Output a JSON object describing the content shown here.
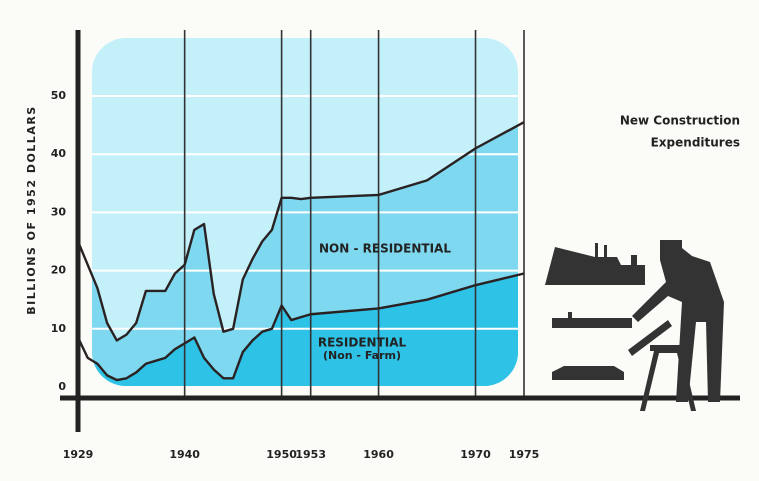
{
  "chart_data": {
    "type": "area",
    "stacked": true,
    "title_lines": [
      "New Construction",
      "Expenditures"
    ],
    "y_label": "BILLIONS OF 1952 DOLLARS",
    "x": [
      1929,
      1930,
      1931,
      1932,
      1933,
      1934,
      1935,
      1936,
      1937,
      1938,
      1939,
      1940,
      1941,
      1942,
      1943,
      1944,
      1945,
      1946,
      1947,
      1948,
      1949,
      1950,
      1951,
      1952,
      1953,
      1960,
      1965,
      1970,
      1975
    ],
    "series": [
      {
        "name": "RESIDENTIAL",
        "sublabel": "(Non - Farm)",
        "color": "#2ec2e6",
        "values": [
          8.5,
          5,
          4,
          2,
          1.2,
          1.5,
          2.5,
          4,
          4.5,
          5,
          6.5,
          7.5,
          8.5,
          5,
          3,
          1.5,
          1.5,
          6,
          8,
          9.5,
          10,
          14,
          11.5,
          12,
          12.5,
          13.5,
          15,
          17.5,
          19.5
        ]
      },
      {
        "name": "NON - RESIDENTIAL",
        "color": "#7ed8ef",
        "values": [
          16.5,
          16,
          13,
          9,
          6.8,
          7.5,
          8.5,
          12.5,
          12,
          11.5,
          13,
          13.5,
          18.5,
          23,
          13,
          8,
          8.5,
          12.5,
          14,
          15.5,
          17,
          18.5,
          21,
          20.3,
          20,
          19.5,
          20.5,
          23.5,
          26
        ]
      }
    ],
    "xlim": [
      1929,
      1975
    ],
    "xticks": [
      1929,
      1940,
      1950,
      1953,
      1960,
      1970,
      1975
    ],
    "ylim": [
      0,
      60
    ],
    "yticks": [
      0,
      10,
      20,
      30,
      40,
      50
    ],
    "grid": true
  }
}
